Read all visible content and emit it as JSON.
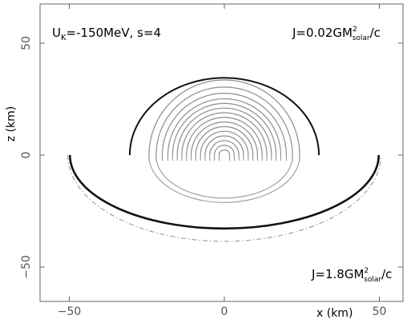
{
  "chart_data": {
    "type": "line",
    "title": "",
    "xlabel": "x (km)",
    "ylabel": "z (km)",
    "xlim": [
      -60,
      55
    ],
    "ylim": [
      -55,
      55
    ],
    "grid": false,
    "x_ticks": [
      {
        "value": -50,
        "label": "−50"
      },
      {
        "value": 0,
        "label": "0"
      },
      {
        "value": 50,
        "label": "50"
      }
    ],
    "y_ticks": [
      {
        "value": 50,
        "label": "50"
      },
      {
        "value": 0,
        "label": "0"
      },
      {
        "value": -50,
        "label": "−50"
      }
    ],
    "annotations": {
      "model": {
        "main": "U",
        "sub": "K",
        "rest": "=-150MeV, s=4"
      },
      "upper_spin": {
        "prefix": "J=0.02GM",
        "sup": "2",
        "sub": "solar",
        "suffix": "/c"
      },
      "lower_spin": {
        "prefix": "J=1.8GM",
        "sup": "2",
        "sub": "solar",
        "suffix": "/c"
      }
    },
    "upper_surface": {
      "half_width": 30.5,
      "height": 34.5
    },
    "upper_contours_radii": [
      1.7,
      3.2,
      4.7,
      6.2,
      7.7,
      9.2,
      10.7,
      12.2,
      13.7,
      15.2,
      16.7,
      18.2,
      20.0,
      22.0,
      24.3
    ],
    "lower_surface": {
      "half_width": 49.8,
      "depth": 32.8
    },
    "lower_dashdot": {
      "half_width": 50.5,
      "depth": 38.5
    },
    "lower_contour_ticks_x": [
      -24.3,
      -22.0,
      -20.0,
      -18.2,
      -16.7,
      -15.2,
      -13.7,
      -12.2,
      -10.7,
      -9.2,
      -7.7,
      -6.2,
      -4.7,
      -3.2,
      -1.7,
      1.7,
      3.2,
      4.7,
      6.2,
      7.7,
      9.2,
      10.7,
      12.2,
      13.7,
      15.2,
      16.7,
      18.2,
      20.0,
      22.0,
      24.3
    ]
  }
}
